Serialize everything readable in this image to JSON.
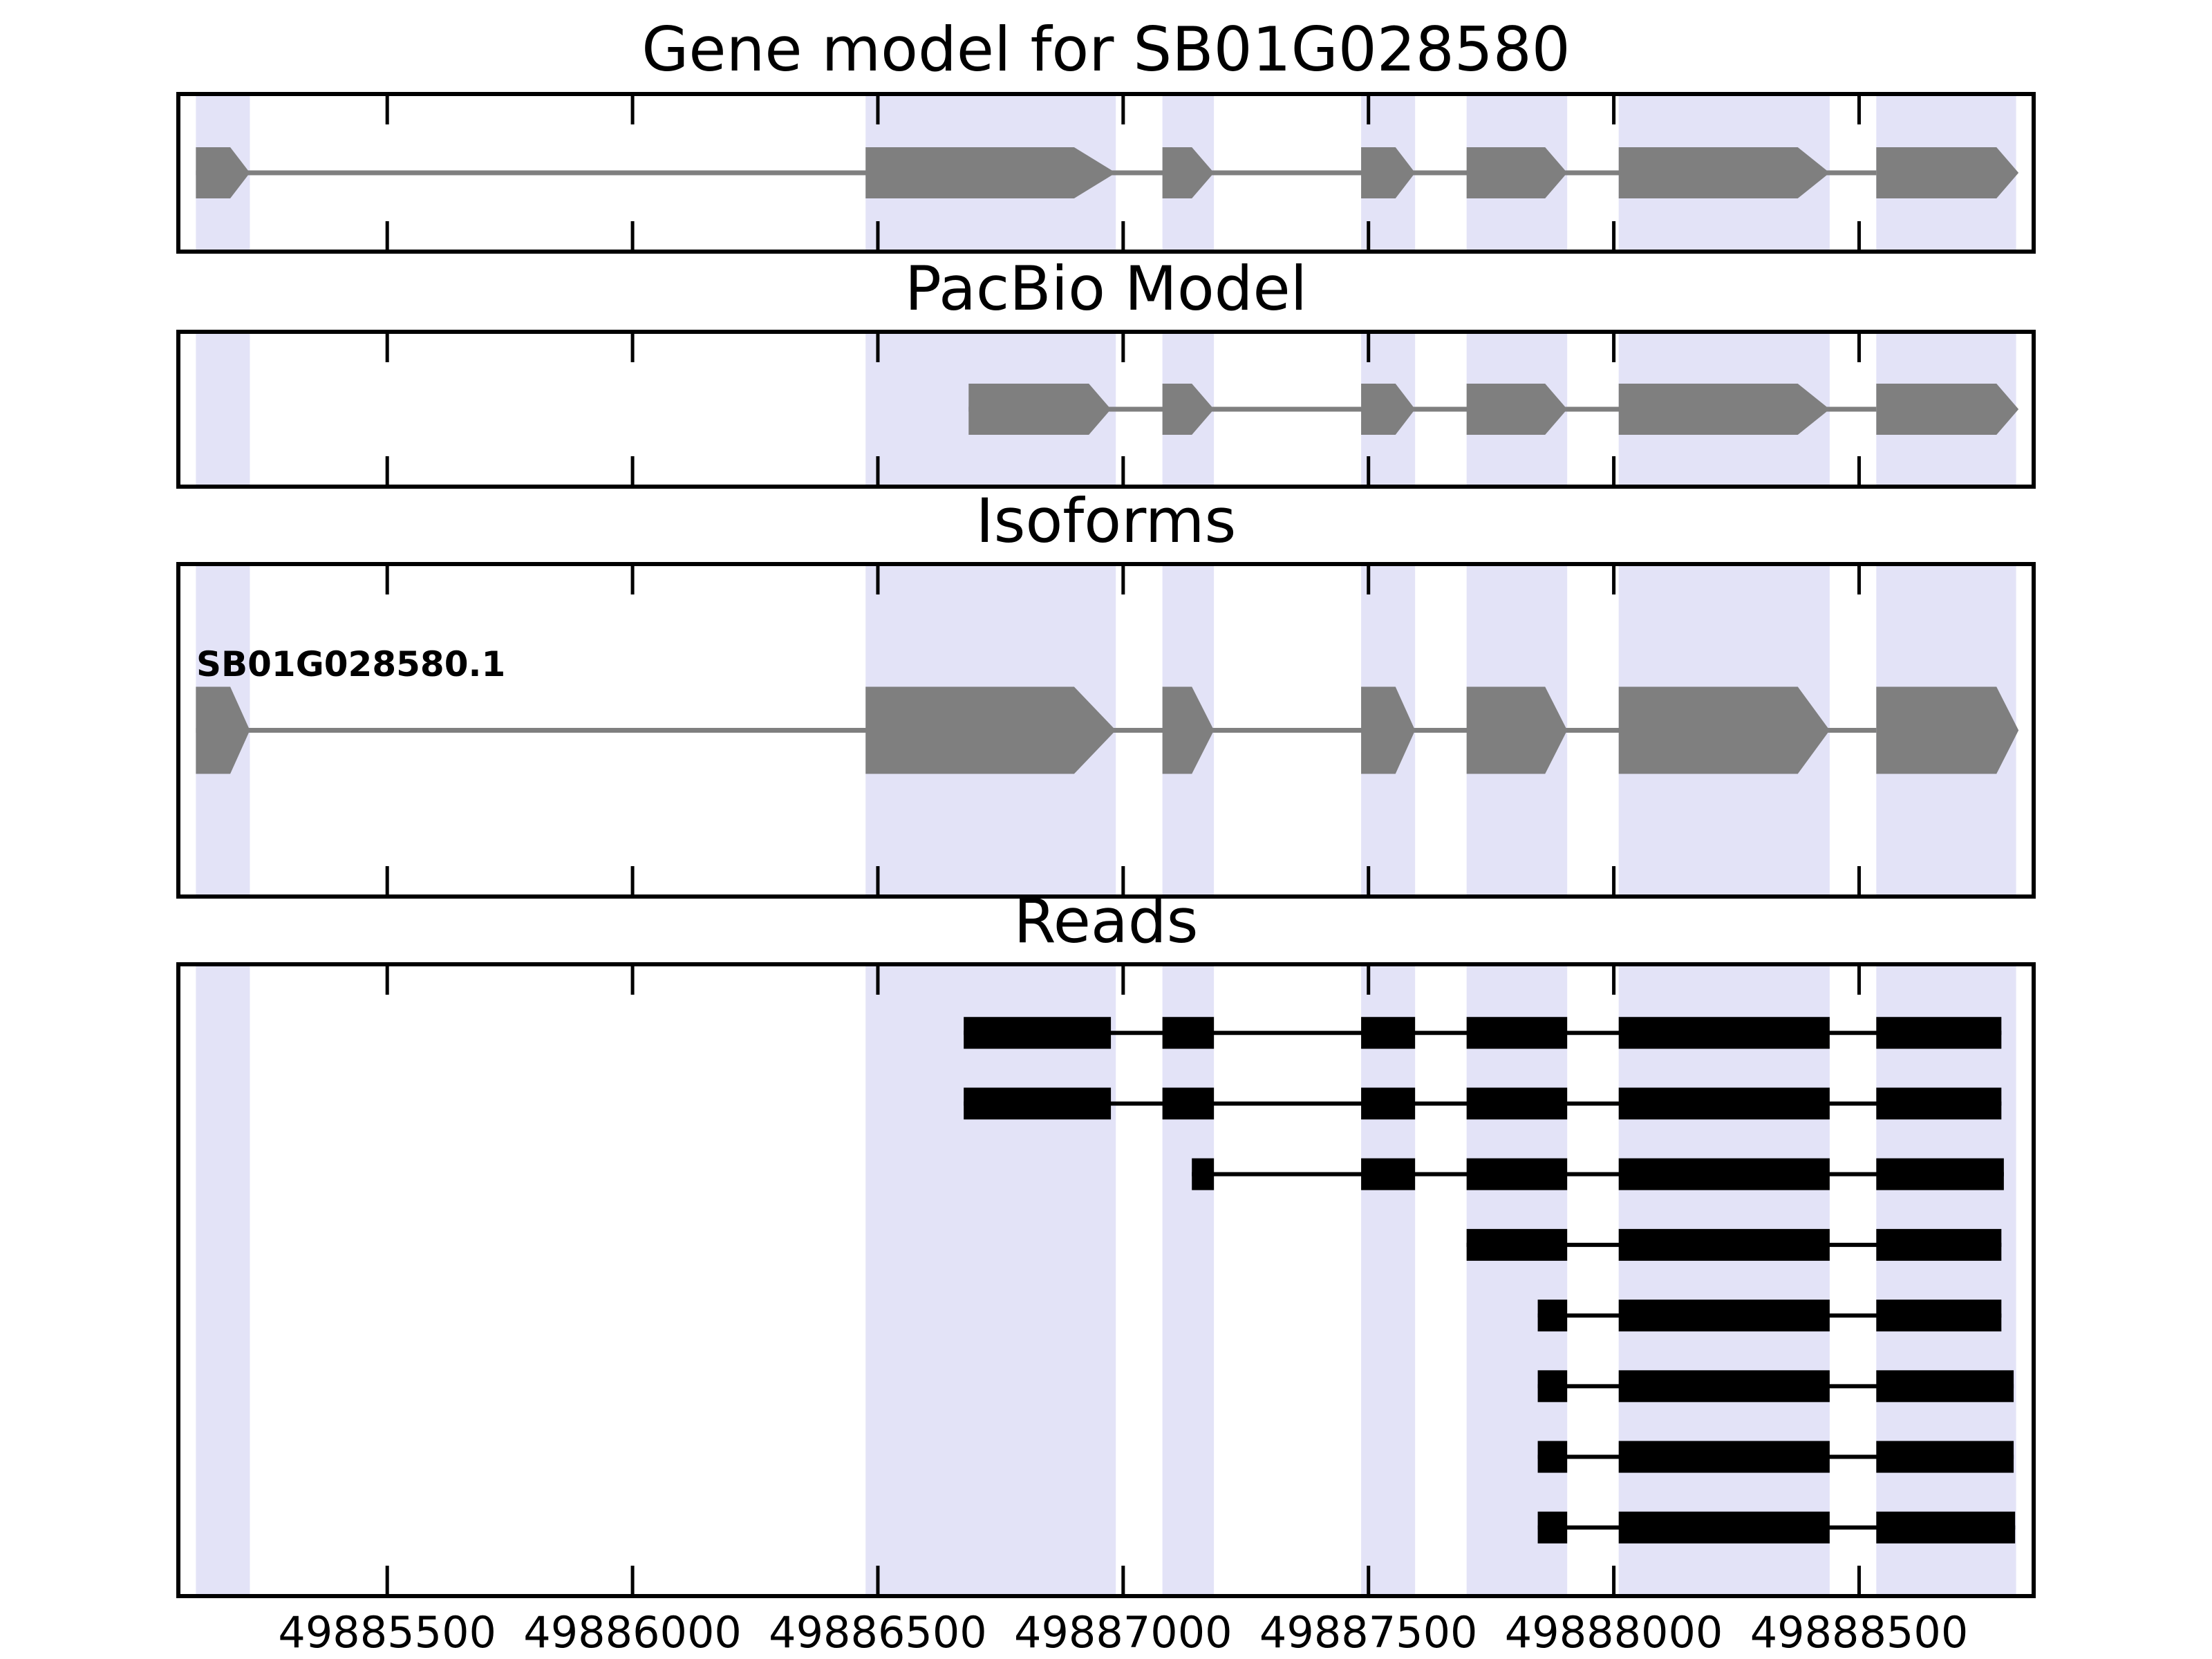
{
  "figure": {
    "background": "#ffffff"
  },
  "chart_data": {
    "type": "gene-model-tracks",
    "title": "Gene model for SB01G028580",
    "x_axis": {
      "min": 49885070,
      "max": 49888860,
      "tick_values": [
        49885500,
        49886000,
        49886500,
        49887000,
        49887500,
        49888000,
        49888500
      ],
      "tick_labels": [
        "49885500",
        "49886000",
        "49886500",
        "49887000",
        "49887500",
        "49888000",
        "49888500"
      ]
    },
    "highlight_regions": [
      [
        49885110,
        49885220
      ],
      [
        49886475,
        49886985
      ],
      [
        49887080,
        49887185
      ],
      [
        49887485,
        49887595
      ],
      [
        49887700,
        49887905
      ],
      [
        49888010,
        49888440
      ],
      [
        49888535,
        49888820
      ]
    ],
    "tracks": [
      {
        "id": "gene_model",
        "kind": "model",
        "title": "Gene model for SB01G028580",
        "exons": [
          {
            "start": 49885110,
            "block_end": 49885180,
            "tip": 49885220
          },
          {
            "start": 49886475,
            "block_end": 49886900,
            "tip": 49886985
          },
          {
            "start": 49887080,
            "block_end": 49887140,
            "tip": 49887185
          },
          {
            "start": 49887485,
            "block_end": 49887555,
            "tip": 49887595
          },
          {
            "start": 49887700,
            "block_end": 49887860,
            "tip": 49887905
          },
          {
            "start": 49888010,
            "block_end": 49888375,
            "tip": 49888440
          },
          {
            "start": 49888535,
            "block_end": 49888780,
            "tip": 49888825
          }
        ]
      },
      {
        "id": "pacbio_model",
        "kind": "model",
        "title": "PacBio Model",
        "exons": [
          {
            "start": 49886685,
            "block_end": 49886930,
            "tip": 49886975
          },
          {
            "start": 49887080,
            "block_end": 49887140,
            "tip": 49887185
          },
          {
            "start": 49887485,
            "block_end": 49887555,
            "tip": 49887595
          },
          {
            "start": 49887700,
            "block_end": 49887860,
            "tip": 49887905
          },
          {
            "start": 49888010,
            "block_end": 49888375,
            "tip": 49888440
          },
          {
            "start": 49888535,
            "block_end": 49888780,
            "tip": 49888825
          }
        ]
      },
      {
        "id": "isoforms",
        "kind": "isoforms",
        "title": "Isoforms",
        "isoforms": [
          {
            "label": "SB01G028580.1",
            "exons": [
              {
                "start": 49885110,
                "block_end": 49885180,
                "tip": 49885220
              },
              {
                "start": 49886475,
                "block_end": 49886900,
                "tip": 49886985
              },
              {
                "start": 49887080,
                "block_end": 49887140,
                "tip": 49887185
              },
              {
                "start": 49887485,
                "block_end": 49887555,
                "tip": 49887595
              },
              {
                "start": 49887700,
                "block_end": 49887860,
                "tip": 49887905
              },
              {
                "start": 49888010,
                "block_end": 49888375,
                "tip": 49888440
              },
              {
                "start": 49888535,
                "block_end": 49888780,
                "tip": 49888825
              }
            ]
          }
        ]
      },
      {
        "id": "reads",
        "kind": "reads",
        "title": "Reads",
        "reads": [
          {
            "blocks": [
              [
                49886675,
                49886975
              ],
              [
                49887080,
                49887185
              ],
              [
                49887485,
                49887595
              ],
              [
                49887700,
                49887905
              ],
              [
                49888010,
                49888440
              ],
              [
                49888535,
                49888790
              ]
            ]
          },
          {
            "blocks": [
              [
                49886675,
                49886975
              ],
              [
                49887080,
                49887185
              ],
              [
                49887485,
                49887595
              ],
              [
                49887700,
                49887905
              ],
              [
                49888010,
                49888440
              ],
              [
                49888535,
                49888790
              ]
            ]
          },
          {
            "blocks": [
              [
                49887140,
                49887185
              ],
              [
                49887485,
                49887595
              ],
              [
                49887700,
                49887905
              ],
              [
                49888010,
                49888440
              ],
              [
                49888535,
                49888795
              ]
            ]
          },
          {
            "blocks": [
              [
                49887700,
                49887905
              ],
              [
                49888010,
                49888440
              ],
              [
                49888535,
                49888790
              ]
            ]
          },
          {
            "blocks": [
              [
                49887845,
                49887905
              ],
              [
                49888010,
                49888440
              ],
              [
                49888535,
                49888790
              ]
            ]
          },
          {
            "blocks": [
              [
                49887845,
                49887905
              ],
              [
                49888010,
                49888440
              ],
              [
                49888535,
                49888815
              ]
            ]
          },
          {
            "blocks": [
              [
                49887845,
                49887905
              ],
              [
                49888010,
                49888440
              ],
              [
                49888535,
                49888815
              ]
            ]
          },
          {
            "blocks": [
              [
                49887845,
                49887905
              ],
              [
                49888010,
                49888440
              ],
              [
                49888535,
                49888818
              ]
            ]
          }
        ]
      }
    ],
    "colors": {
      "exon": "#7f7f7f",
      "intron_line": "#7f7f7f",
      "read": "#000000",
      "highlight_band": "#e3e3f7",
      "panel_border": "#000000",
      "tick": "#000000",
      "text": "#000000"
    },
    "legend": null,
    "grid": false
  }
}
